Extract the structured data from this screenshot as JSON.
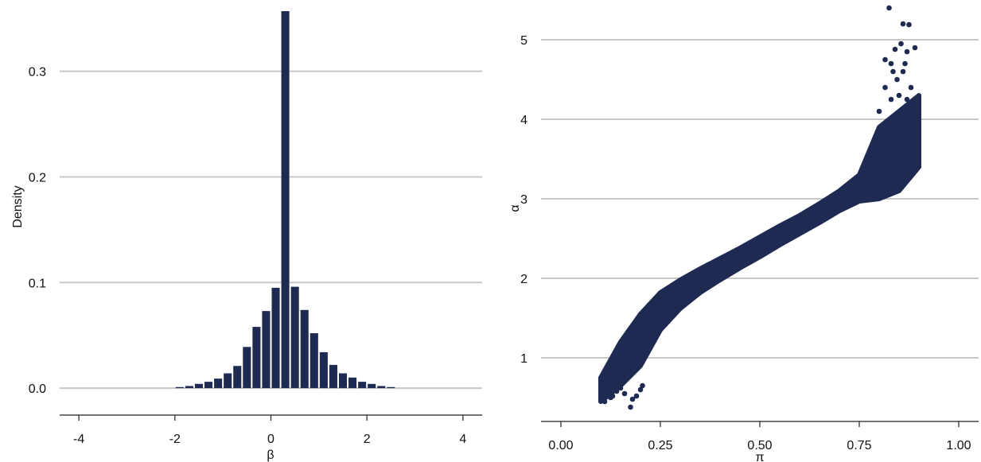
{
  "colors": {
    "mark": "#1f2a52",
    "grid": "#c8c8c8",
    "axis": "#222222"
  },
  "chart_data": [
    {
      "type": "bar",
      "title": "",
      "xlabel": "β",
      "ylabel": "Density",
      "xlim": [
        -4.4,
        4.4
      ],
      "ylim": [
        -0.018,
        0.36
      ],
      "grid": "horizontal",
      "xticks": [
        -4,
        -2,
        0,
        2,
        4
      ],
      "xtick_labels": [
        "-4",
        "-2",
        "0",
        "2",
        "4"
      ],
      "yticks": [
        0.0,
        0.1,
        0.2,
        0.3
      ],
      "ytick_labels": [
        "0.0",
        "0.1",
        "0.2",
        "0.3"
      ],
      "bin_width": 0.2,
      "bin_centers": [
        -1.9,
        -1.7,
        -1.5,
        -1.3,
        -1.1,
        -0.9,
        -0.7,
        -0.5,
        -0.3,
        -0.1,
        0.1,
        0.3,
        0.5,
        0.7,
        0.9,
        1.1,
        1.3,
        1.5,
        1.7,
        1.9,
        2.1,
        2.3,
        2.5
      ],
      "values": [
        0.001,
        0.002,
        0.004,
        0.006,
        0.009,
        0.014,
        0.021,
        0.039,
        0.058,
        0.073,
        0.095,
        0.357,
        0.096,
        0.074,
        0.052,
        0.034,
        0.022,
        0.014,
        0.01,
        0.006,
        0.004,
        0.002,
        0.001
      ]
    },
    {
      "type": "scatter",
      "title": "",
      "xlabel": "π",
      "ylabel": "α",
      "xlim": [
        -0.05,
        1.05
      ],
      "ylim": [
        0.3,
        5.4
      ],
      "grid": "horizontal",
      "xticks": [
        0.0,
        0.25,
        0.5,
        0.75,
        1.0
      ],
      "xtick_labels": [
        "0.00",
        "0.25",
        "0.50",
        "0.75",
        "1.00"
      ],
      "yticks": [
        1,
        2,
        3,
        4,
        5
      ],
      "ytick_labels": [
        "1",
        "2",
        "3",
        "4",
        "5"
      ],
      "band": {
        "pi": [
          0.1,
          0.15,
          0.2,
          0.25,
          0.3,
          0.35,
          0.4,
          0.45,
          0.5,
          0.55,
          0.6,
          0.65,
          0.7,
          0.75,
          0.8,
          0.85,
          0.9
        ],
        "alpha_low": [
          0.45,
          0.65,
          0.9,
          1.35,
          1.62,
          1.82,
          1.98,
          2.13,
          2.27,
          2.42,
          2.56,
          2.7,
          2.85,
          2.97,
          3.0,
          3.1,
          3.4
        ],
        "alpha_high": [
          0.75,
          1.2,
          1.55,
          1.82,
          1.98,
          2.12,
          2.25,
          2.38,
          2.52,
          2.66,
          2.79,
          2.94,
          3.1,
          3.3,
          3.9,
          4.1,
          4.3
        ]
      },
      "points": [
        [
          0.825,
          5.4
        ],
        [
          0.86,
          5.2
        ],
        [
          0.875,
          5.19
        ],
        [
          0.89,
          4.9
        ],
        [
          0.87,
          4.85
        ],
        [
          0.855,
          4.95
        ],
        [
          0.84,
          4.88
        ],
        [
          0.83,
          4.7
        ],
        [
          0.86,
          4.6
        ],
        [
          0.88,
          4.4
        ],
        [
          0.845,
          4.5
        ],
        [
          0.815,
          4.4
        ],
        [
          0.87,
          4.25
        ],
        [
          0.89,
          4.2
        ],
        [
          0.83,
          4.25
        ],
        [
          0.8,
          4.1
        ],
        [
          0.855,
          4.05
        ],
        [
          0.875,
          4.0
        ],
        [
          0.82,
          3.95
        ],
        [
          0.88,
          3.8
        ],
        [
          0.815,
          4.75
        ],
        [
          0.865,
          4.7
        ],
        [
          0.85,
          4.3
        ],
        [
          0.835,
          4.6
        ],
        [
          0.11,
          0.45
        ],
        [
          0.12,
          0.6
        ],
        [
          0.115,
          0.55
        ],
        [
          0.13,
          0.52
        ],
        [
          0.14,
          0.58
        ],
        [
          0.175,
          0.38
        ],
        [
          0.19,
          0.52
        ],
        [
          0.2,
          0.6
        ],
        [
          0.18,
          0.48
        ],
        [
          0.16,
          0.55
        ],
        [
          0.105,
          0.7
        ],
        [
          0.205,
          0.65
        ],
        [
          0.15,
          0.62
        ],
        [
          0.125,
          0.5
        ]
      ]
    }
  ]
}
